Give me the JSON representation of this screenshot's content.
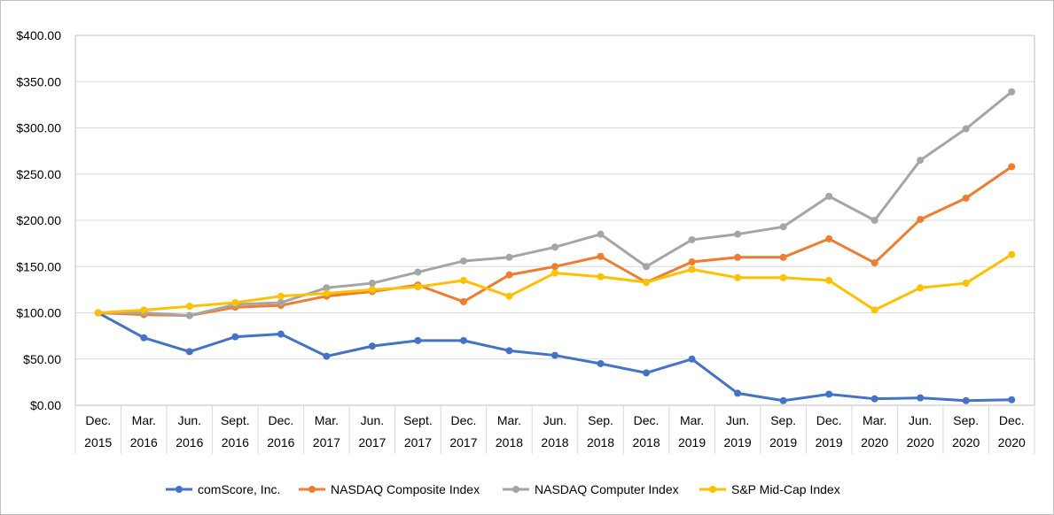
{
  "chart_data": {
    "type": "line",
    "title": "",
    "xlabel": "",
    "ylabel": "",
    "ylim": [
      0,
      400
    ],
    "y_ticks": [
      "$0.00",
      "$50.00",
      "$100.00",
      "$150.00",
      "$200.00",
      "$250.00",
      "$300.00",
      "$350.00",
      "$400.00"
    ],
    "categories": [
      [
        "Dec.",
        "2015"
      ],
      [
        "Mar.",
        "2016"
      ],
      [
        "Jun.",
        "2016"
      ],
      [
        "Sept.",
        "2016"
      ],
      [
        "Dec.",
        "2016"
      ],
      [
        "Mar.",
        "2017"
      ],
      [
        "Jun.",
        "2017"
      ],
      [
        "Sept.",
        "2017"
      ],
      [
        "Dec.",
        "2017"
      ],
      [
        "Mar.",
        "2018"
      ],
      [
        "Jun.",
        "2018"
      ],
      [
        "Sep.",
        "2018"
      ],
      [
        "Dec.",
        "2018"
      ],
      [
        "Mar.",
        "2019"
      ],
      [
        "Jun.",
        "2019"
      ],
      [
        "Sep.",
        "2019"
      ],
      [
        "Dec.",
        "2019"
      ],
      [
        "Mar.",
        "2020"
      ],
      [
        "Jun.",
        "2020"
      ],
      [
        "Sep.",
        "2020"
      ],
      [
        "Dec.",
        "2020"
      ]
    ],
    "grid": true,
    "legend_position": "bottom",
    "series": [
      {
        "name": "comScore, Inc.",
        "color": "#4472C4",
        "values": [
          100,
          73,
          58,
          74,
          77,
          53,
          64,
          70,
          70,
          59,
          54,
          45,
          35,
          50,
          13,
          5,
          12,
          7,
          8,
          5,
          6
        ]
      },
      {
        "name": "NASDAQ Composite Index",
        "color": "#ED7D31",
        "values": [
          100,
          98,
          97,
          106,
          108,
          118,
          123,
          130,
          112,
          141,
          150,
          161,
          133,
          155,
          160,
          160,
          180,
          154,
          201,
          224,
          258
        ]
      },
      {
        "name": "NASDAQ Computer Index",
        "color": "#A5A5A5",
        "values": [
          100,
          100,
          97,
          109,
          111,
          127,
          132,
          144,
          156,
          160,
          171,
          185,
          150,
          179,
          185,
          193,
          226,
          200,
          265,
          299,
          339
        ]
      },
      {
        "name": "S&P Mid-Cap Index",
        "color": "#FFC000",
        "values": [
          100,
          103,
          107,
          111,
          118,
          121,
          125,
          128,
          135,
          118,
          143,
          139,
          133,
          147,
          138,
          138,
          135,
          103,
          127,
          132,
          163
        ]
      }
    ]
  }
}
